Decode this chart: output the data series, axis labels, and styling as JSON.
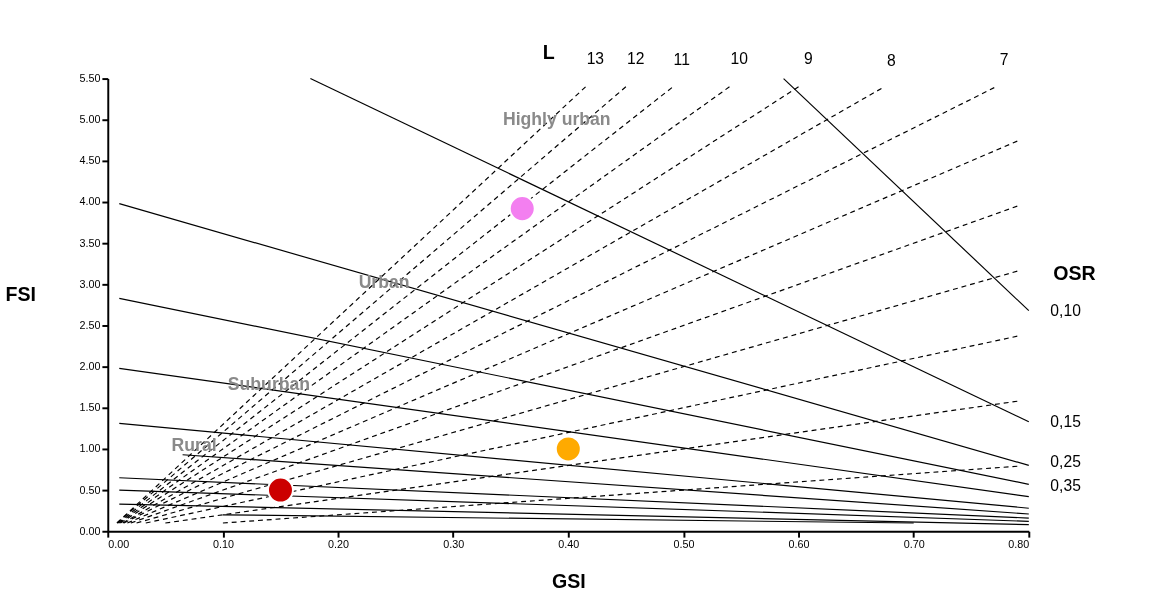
{
  "chart_data": {
    "type": "scatter",
    "xlabel": "GSI",
    "ylabel": "FSI",
    "xlim": [
      0,
      0.8
    ],
    "ylim": [
      0,
      5.5
    ],
    "xticks": [
      {
        "value": 0,
        "label": "0.00"
      },
      {
        "value": 0.1,
        "label": "0.10"
      },
      {
        "value": 0.2,
        "label": "0.20"
      },
      {
        "value": 0.3,
        "label": "0.30"
      },
      {
        "value": 0.4,
        "label": "0.40"
      },
      {
        "value": 0.5,
        "label": "0.50"
      },
      {
        "value": 0.6,
        "label": "0.60"
      },
      {
        "value": 0.7,
        "label": "0.70"
      },
      {
        "value": 0.8,
        "label": "0.80"
      }
    ],
    "yticks": [
      {
        "value": 0,
        "label": "0.00"
      },
      {
        "value": 0.5,
        "label": "0.50"
      },
      {
        "value": 1,
        "label": "1.00"
      },
      {
        "value": 1.5,
        "label": "1.50"
      },
      {
        "value": 2,
        "label": "2.00"
      },
      {
        "value": 2.5,
        "label": "2.50"
      },
      {
        "value": 3,
        "label": "3.00"
      },
      {
        "value": 3.5,
        "label": "3.50"
      },
      {
        "value": 4,
        "label": "4.00"
      },
      {
        "value": 4.5,
        "label": "4.50"
      },
      {
        "value": 5,
        "label": "5.00"
      },
      {
        "value": 5.5,
        "label": "5.50"
      }
    ],
    "grid": false,
    "series": [
      {
        "color": "#cc0000",
        "marker": "circle",
        "x": [
          0.15
        ],
        "values": [
          0.5
        ]
      },
      {
        "color": "#ffaa00",
        "marker": "circle",
        "x": [
          0.4
        ],
        "values": [
          1.0
        ]
      },
      {
        "color": "#f37ff0",
        "marker": "circle",
        "x": [
          0.36
        ],
        "values": [
          3.92
        ]
      },
      {
        "type": "line",
        "line_style": "dashed",
        "color": "#000000",
        "x": [
          0.1,
          0.79
        ],
        "values": [
          0.1,
          0.79
        ]
      },
      {
        "type": "line",
        "line_style": "dashed",
        "color": "#000000",
        "x": [
          0.05,
          0.79
        ],
        "values": [
          0.1,
          1.58
        ]
      },
      {
        "type": "line",
        "line_style": "dashed",
        "color": "#000000",
        "x": [
          0.033,
          0.79
        ],
        "values": [
          0.1,
          2.37
        ]
      },
      {
        "type": "line",
        "line_style": "dashed",
        "color": "#000000",
        "x": [
          0.025,
          0.79
        ],
        "values": [
          0.1,
          3.16
        ]
      },
      {
        "type": "line",
        "line_style": "dashed",
        "color": "#000000",
        "x": [
          0.02,
          0.79
        ],
        "values": [
          0.1,
          3.95
        ]
      },
      {
        "type": "line",
        "line_style": "dashed",
        "color": "#000000",
        "x": [
          0.017,
          0.79
        ],
        "values": [
          0.1,
          4.74
        ]
      },
      {
        "type": "line",
        "line_style": "dashed",
        "color": "#000000",
        "x": [
          0.014,
          0.77
        ],
        "values": [
          0.1,
          5.39
        ]
      },
      {
        "type": "line",
        "line_style": "dashed",
        "color": "#000000",
        "x": [
          0.013,
          0.672
        ],
        "values": [
          0.1,
          5.38
        ]
      },
      {
        "type": "line",
        "line_style": "dashed",
        "color": "#000000",
        "x": [
          0.011,
          0.6
        ],
        "values": [
          0.1,
          5.4
        ]
      },
      {
        "type": "line",
        "line_style": "dashed",
        "color": "#000000",
        "x": [
          0.01,
          0.54
        ],
        "values": [
          0.1,
          5.4
        ]
      },
      {
        "type": "line",
        "line_style": "dashed",
        "color": "#000000",
        "x": [
          0.009,
          0.49
        ],
        "values": [
          0.1,
          5.39
        ]
      },
      {
        "type": "line",
        "line_style": "dashed",
        "color": "#000000",
        "x": [
          0.008,
          0.45
        ],
        "values": [
          0.1,
          5.4
        ]
      },
      {
        "type": "line",
        "line_style": "dashed",
        "color": "#000000",
        "x": [
          0.008,
          0.415
        ],
        "values": [
          0.1,
          5.4
        ]
      },
      {
        "type": "line",
        "line_style": "solid",
        "color": "#000000",
        "x": [
          0.587,
          0.8
        ],
        "values": [
          5.5,
          2.68
        ]
      },
      {
        "type": "line",
        "line_style": "solid",
        "color": "#000000",
        "x": [
          0.176,
          0.8
        ],
        "values": [
          5.5,
          1.33
        ]
      },
      {
        "type": "line",
        "line_style": "solid",
        "color": "#000000",
        "x": [
          0.01,
          0.8
        ],
        "values": [
          3.98,
          0.8
        ]
      },
      {
        "type": "line",
        "line_style": "solid",
        "color": "#000000",
        "x": [
          0.01,
          0.8
        ],
        "values": [
          2.83,
          0.57
        ]
      },
      {
        "type": "line",
        "line_style": "solid",
        "color": "#000000",
        "x": [
          0.01,
          0.8
        ],
        "values": [
          1.98,
          0.42
        ]
      },
      {
        "type": "line",
        "line_style": "solid",
        "color": "#000000",
        "x": [
          0.01,
          0.8
        ],
        "values": [
          1.31,
          0.28
        ]
      },
      {
        "type": "line",
        "line_style": "solid",
        "color": "#000000",
        "x": [
          0.065,
          0.8
        ],
        "values": [
          0.93,
          0.21
        ]
      },
      {
        "type": "line",
        "line_style": "solid",
        "color": "#000000",
        "x": [
          0.01,
          0.8
        ],
        "values": [
          0.65,
          0.16
        ]
      },
      {
        "type": "line",
        "line_style": "solid",
        "color": "#000000",
        "x": [
          0.01,
          0.8
        ],
        "values": [
          0.5,
          0.12
        ]
      },
      {
        "type": "line",
        "line_style": "solid",
        "color": "#000000",
        "x": [
          0.01,
          0.8
        ],
        "values": [
          0.33,
          0.08
        ]
      },
      {
        "type": "line",
        "line_style": "solid",
        "color": "#000000",
        "x": [
          0.1,
          0.7
        ],
        "values": [
          0.2,
          0.1
        ]
      }
    ],
    "annotations": [
      "L",
      "OSR",
      {
        "text": "13",
        "x": 0.415,
        "y": 5.4
      },
      {
        "text": "12",
        "x": 0.45,
        "y": 5.4
      },
      {
        "text": "11",
        "x": 0.49,
        "y": 5.39
      },
      {
        "text": "10",
        "x": 0.54,
        "y": 5.4
      },
      {
        "text": "9",
        "x": 0.6,
        "y": 5.4
      },
      {
        "text": "8",
        "x": 0.672,
        "y": 5.38
      },
      {
        "text": "7",
        "x": 0.77,
        "y": 5.39
      },
      {
        "text": "0,10",
        "x": 0.8,
        "y": 2.68
      },
      {
        "text": "0,15",
        "x": 0.8,
        "y": 1.33
      },
      {
        "text": "0,25",
        "x": 0.8,
        "y": 0.84
      },
      {
        "text": "0,35",
        "x": 0.8,
        "y": 0.55
      },
      {
        "text": "Highly urban",
        "x": 0.39,
        "y": 5.0
      },
      {
        "text": "Urban",
        "x": 0.24,
        "y": 3.02
      },
      {
        "text": "Suburban",
        "x": 0.14,
        "y": 1.78
      },
      {
        "text": "Rural",
        "x": 0.075,
        "y": 1.04
      }
    ]
  }
}
